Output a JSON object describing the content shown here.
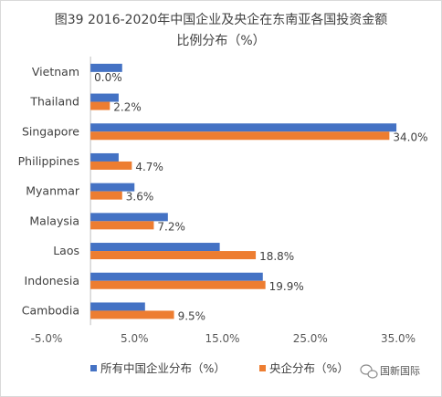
{
  "chart_data": {
    "type": "bar",
    "orientation": "horizontal",
    "title_line1": "图39 2016-2020年中国企业及央企在东南亚各国投资金额",
    "title_line2": "比例分布（%）",
    "categories": [
      "Vietnam",
      "Thailand",
      "Singapore",
      "Philippines",
      "Myanmar",
      "Malaysia",
      "Laos",
      "Indonesia",
      "Cambodia"
    ],
    "series": [
      {
        "name": "所有中国企业分布（%）",
        "color": "#4472c4",
        "values": [
          3.6,
          3.2,
          34.8,
          3.2,
          5.0,
          8.8,
          14.7,
          19.6,
          6.2
        ]
      },
      {
        "name": "央企分布（%）",
        "color": "#ed7d31",
        "values": [
          0.0,
          2.2,
          34.0,
          4.7,
          3.6,
          7.2,
          18.8,
          19.9,
          9.5
        ],
        "labels": [
          "0.0%",
          "2.2%",
          "34.0%",
          "4.7%",
          "3.6%",
          "7.2%",
          "18.8%",
          "19.9%",
          "9.5%"
        ]
      }
    ],
    "xlim": [
      -5.0,
      35.0
    ],
    "xticks": [
      "-5.0%",
      "5.0%",
      "15.0%",
      "25.0%",
      "35.0%"
    ],
    "xtick_values": [
      -5,
      5,
      15,
      25,
      35
    ],
    "grid": false,
    "legend_position": "bottom"
  },
  "watermark": {
    "text": "国新国际",
    "icon": "wechat-icon"
  }
}
